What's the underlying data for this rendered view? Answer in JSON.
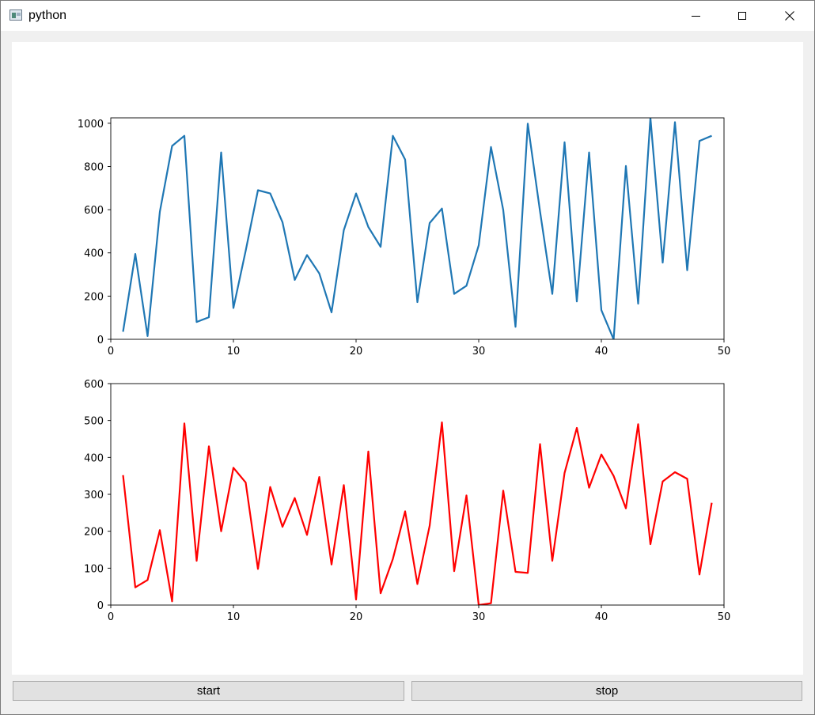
{
  "window": {
    "title": "python"
  },
  "buttons": {
    "start_label": "start",
    "stop_label": "stop"
  },
  "chart_data": [
    {
      "type": "line",
      "color": "#1f77b4",
      "x": [
        1,
        2,
        3,
        4,
        5,
        6,
        7,
        8,
        9,
        10,
        11,
        12,
        13,
        14,
        15,
        16,
        17,
        18,
        19,
        20,
        21,
        22,
        23,
        24,
        25,
        26,
        27,
        28,
        29,
        30,
        31,
        32,
        33,
        34,
        35,
        36,
        37,
        38,
        39,
        40,
        41,
        42,
        43,
        44,
        45,
        46,
        47,
        48,
        49
      ],
      "values": [
        35,
        395,
        15,
        590,
        895,
        942,
        80,
        102,
        865,
        145,
        410,
        690,
        675,
        542,
        275,
        390,
        305,
        125,
        505,
        675,
        520,
        428,
        942,
        832,
        172,
        538,
        605,
        210,
        248,
        435,
        890,
        598,
        58,
        998,
        592,
        210,
        912,
        175,
        865,
        135,
        0,
        802,
        165,
        1025,
        355,
        1005,
        320,
        918,
        942
      ],
      "xlim": [
        0,
        50
      ],
      "ylim": [
        0,
        1025
      ],
      "xticks": [
        0,
        10,
        20,
        30,
        40,
        50
      ],
      "yticks": [
        0,
        200,
        400,
        600,
        800,
        1000
      ]
    },
    {
      "type": "line",
      "color": "#ff0000",
      "x": [
        1,
        2,
        3,
        4,
        5,
        6,
        7,
        8,
        9,
        10,
        11,
        12,
        13,
        14,
        15,
        16,
        17,
        18,
        19,
        20,
        21,
        22,
        23,
        24,
        25,
        26,
        27,
        28,
        29,
        30,
        31,
        32,
        33,
        34,
        35,
        36,
        37,
        38,
        39,
        40,
        41,
        42,
        43,
        44,
        45,
        46,
        47,
        48,
        49
      ],
      "values": [
        352,
        48,
        68,
        203,
        10,
        492,
        120,
        430,
        200,
        372,
        332,
        98,
        320,
        212,
        290,
        190,
        347,
        110,
        325,
        15,
        416,
        32,
        125,
        254,
        57,
        215,
        495,
        92,
        297,
        0,
        5,
        310,
        90,
        87,
        436,
        120,
        358,
        480,
        318,
        408,
        350,
        262,
        490,
        165,
        335,
        360,
        342,
        83,
        277
      ],
      "xlim": [
        0,
        50
      ],
      "ylim": [
        0,
        600
      ],
      "xticks": [
        0,
        10,
        20,
        30,
        40,
        50
      ],
      "yticks": [
        0,
        100,
        200,
        300,
        400,
        500,
        600
      ]
    }
  ]
}
